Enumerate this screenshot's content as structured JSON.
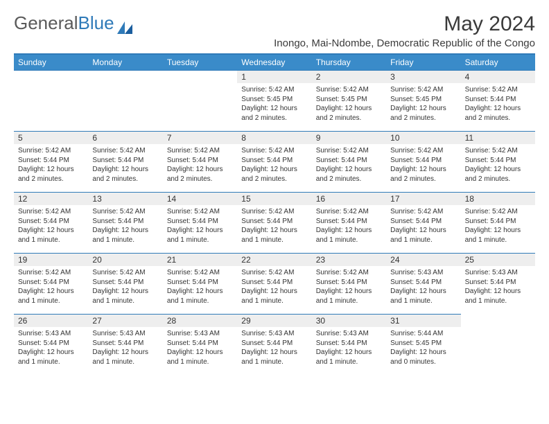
{
  "header": {
    "logo_general": "General",
    "logo_blue": "Blue",
    "title": "May 2024",
    "location": "Inongo, Mai-Ndombe, Democratic Republic of the Congo"
  },
  "colors": {
    "header_bg": "#3a8bc9",
    "border": "#2f7ab8",
    "daynum_bg": "#eeeeee",
    "text": "#333333"
  },
  "daynames": [
    "Sunday",
    "Monday",
    "Tuesday",
    "Wednesday",
    "Thursday",
    "Friday",
    "Saturday"
  ],
  "leading_blank": 3,
  "days": [
    {
      "n": 1,
      "sunrise": "5:42 AM",
      "sunset": "5:45 PM",
      "daylight": "12 hours and 2 minutes."
    },
    {
      "n": 2,
      "sunrise": "5:42 AM",
      "sunset": "5:45 PM",
      "daylight": "12 hours and 2 minutes."
    },
    {
      "n": 3,
      "sunrise": "5:42 AM",
      "sunset": "5:45 PM",
      "daylight": "12 hours and 2 minutes."
    },
    {
      "n": 4,
      "sunrise": "5:42 AM",
      "sunset": "5:44 PM",
      "daylight": "12 hours and 2 minutes."
    },
    {
      "n": 5,
      "sunrise": "5:42 AM",
      "sunset": "5:44 PM",
      "daylight": "12 hours and 2 minutes."
    },
    {
      "n": 6,
      "sunrise": "5:42 AM",
      "sunset": "5:44 PM",
      "daylight": "12 hours and 2 minutes."
    },
    {
      "n": 7,
      "sunrise": "5:42 AM",
      "sunset": "5:44 PM",
      "daylight": "12 hours and 2 minutes."
    },
    {
      "n": 8,
      "sunrise": "5:42 AM",
      "sunset": "5:44 PM",
      "daylight": "12 hours and 2 minutes."
    },
    {
      "n": 9,
      "sunrise": "5:42 AM",
      "sunset": "5:44 PM",
      "daylight": "12 hours and 2 minutes."
    },
    {
      "n": 10,
      "sunrise": "5:42 AM",
      "sunset": "5:44 PM",
      "daylight": "12 hours and 2 minutes."
    },
    {
      "n": 11,
      "sunrise": "5:42 AM",
      "sunset": "5:44 PM",
      "daylight": "12 hours and 2 minutes."
    },
    {
      "n": 12,
      "sunrise": "5:42 AM",
      "sunset": "5:44 PM",
      "daylight": "12 hours and 1 minute."
    },
    {
      "n": 13,
      "sunrise": "5:42 AM",
      "sunset": "5:44 PM",
      "daylight": "12 hours and 1 minute."
    },
    {
      "n": 14,
      "sunrise": "5:42 AM",
      "sunset": "5:44 PM",
      "daylight": "12 hours and 1 minute."
    },
    {
      "n": 15,
      "sunrise": "5:42 AM",
      "sunset": "5:44 PM",
      "daylight": "12 hours and 1 minute."
    },
    {
      "n": 16,
      "sunrise": "5:42 AM",
      "sunset": "5:44 PM",
      "daylight": "12 hours and 1 minute."
    },
    {
      "n": 17,
      "sunrise": "5:42 AM",
      "sunset": "5:44 PM",
      "daylight": "12 hours and 1 minute."
    },
    {
      "n": 18,
      "sunrise": "5:42 AM",
      "sunset": "5:44 PM",
      "daylight": "12 hours and 1 minute."
    },
    {
      "n": 19,
      "sunrise": "5:42 AM",
      "sunset": "5:44 PM",
      "daylight": "12 hours and 1 minute."
    },
    {
      "n": 20,
      "sunrise": "5:42 AM",
      "sunset": "5:44 PM",
      "daylight": "12 hours and 1 minute."
    },
    {
      "n": 21,
      "sunrise": "5:42 AM",
      "sunset": "5:44 PM",
      "daylight": "12 hours and 1 minute."
    },
    {
      "n": 22,
      "sunrise": "5:42 AM",
      "sunset": "5:44 PM",
      "daylight": "12 hours and 1 minute."
    },
    {
      "n": 23,
      "sunrise": "5:42 AM",
      "sunset": "5:44 PM",
      "daylight": "12 hours and 1 minute."
    },
    {
      "n": 24,
      "sunrise": "5:43 AM",
      "sunset": "5:44 PM",
      "daylight": "12 hours and 1 minute."
    },
    {
      "n": 25,
      "sunrise": "5:43 AM",
      "sunset": "5:44 PM",
      "daylight": "12 hours and 1 minute."
    },
    {
      "n": 26,
      "sunrise": "5:43 AM",
      "sunset": "5:44 PM",
      "daylight": "12 hours and 1 minute."
    },
    {
      "n": 27,
      "sunrise": "5:43 AM",
      "sunset": "5:44 PM",
      "daylight": "12 hours and 1 minute."
    },
    {
      "n": 28,
      "sunrise": "5:43 AM",
      "sunset": "5:44 PM",
      "daylight": "12 hours and 1 minute."
    },
    {
      "n": 29,
      "sunrise": "5:43 AM",
      "sunset": "5:44 PM",
      "daylight": "12 hours and 1 minute."
    },
    {
      "n": 30,
      "sunrise": "5:43 AM",
      "sunset": "5:44 PM",
      "daylight": "12 hours and 1 minute."
    },
    {
      "n": 31,
      "sunrise": "5:44 AM",
      "sunset": "5:45 PM",
      "daylight": "12 hours and 0 minutes."
    }
  ],
  "labels": {
    "sunrise": "Sunrise:",
    "sunset": "Sunset:",
    "daylight": "Daylight:"
  }
}
